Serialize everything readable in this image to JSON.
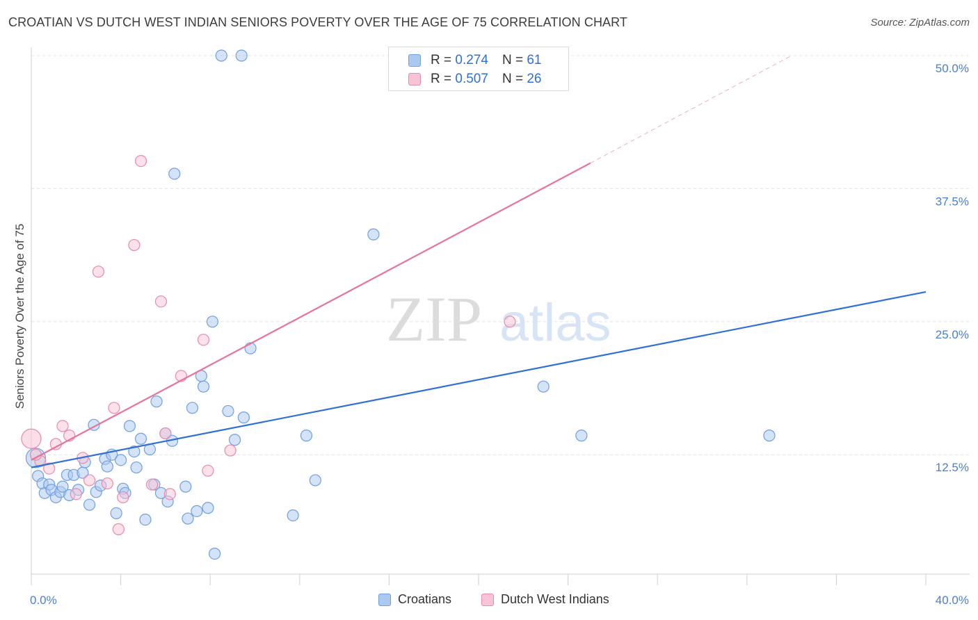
{
  "title": "CROATIAN VS DUTCH WEST INDIAN SENIORS POVERTY OVER THE AGE OF 75 CORRELATION CHART",
  "source": "Source: ZipAtlas.com",
  "watermark": {
    "zip": "ZIP",
    "atlas": "atlas"
  },
  "legend": {
    "rows": [
      {
        "r_label": "R =",
        "r_value": "0.274",
        "n_label": "N =",
        "n_value": "61",
        "color": "#aac8f0",
        "border": "#6f9fe0"
      },
      {
        "r_label": "R =",
        "r_value": "0.507",
        "n_label": "N =",
        "n_value": "26",
        "color": "#f8c3d4",
        "border": "#e98aaa"
      }
    ]
  },
  "chart_data": {
    "type": "scatter",
    "ylabel": "Seniors Poverty Over the Age of 75",
    "xlim": [
      0,
      40
    ],
    "ylim": [
      0,
      50
    ],
    "x_tick_labels": [
      {
        "value": 0,
        "label": "0.0%"
      },
      {
        "value": 40,
        "label": "40.0%"
      }
    ],
    "y_tick_labels": [
      {
        "value": 12.5,
        "label": "12.5%"
      },
      {
        "value": 25,
        "label": "25.0%"
      },
      {
        "value": 37.5,
        "label": "37.5%"
      },
      {
        "value": 50,
        "label": "50.0%"
      }
    ],
    "grid": true,
    "legend_position": "top-center",
    "series": [
      {
        "name": "Croatians",
        "color": "#aac8f0",
        "stroke": "#6f9fe0",
        "trend": {
          "x": [
            0,
            40
          ],
          "y": [
            11.3,
            27.8
          ],
          "color": "#2f6fd6"
        },
        "points": [
          [
            0.2,
            12.2,
            "big"
          ],
          [
            0.3,
            10.5
          ],
          [
            0.5,
            9.8
          ],
          [
            0.6,
            8.9
          ],
          [
            0.8,
            9.7
          ],
          [
            0.9,
            9.2
          ],
          [
            1.1,
            8.5
          ],
          [
            1.3,
            9.0
          ],
          [
            1.4,
            9.5
          ],
          [
            1.6,
            10.6
          ],
          [
            1.7,
            8.7
          ],
          [
            1.9,
            10.6
          ],
          [
            2.1,
            9.2
          ],
          [
            2.3,
            10.8
          ],
          [
            2.4,
            11.8
          ],
          [
            2.6,
            7.8
          ],
          [
            2.8,
            15.3
          ],
          [
            2.9,
            9.0
          ],
          [
            3.1,
            9.6
          ],
          [
            3.3,
            12.1
          ],
          [
            3.4,
            11.4
          ],
          [
            3.6,
            12.5
          ],
          [
            3.8,
            7.0
          ],
          [
            4.0,
            12.0
          ],
          [
            4.1,
            9.3
          ],
          [
            4.2,
            8.9
          ],
          [
            4.4,
            15.2
          ],
          [
            4.6,
            12.8
          ],
          [
            4.7,
            11.3
          ],
          [
            4.9,
            14.0
          ],
          [
            5.1,
            6.4
          ],
          [
            5.3,
            13.0
          ],
          [
            5.5,
            9.7
          ],
          [
            5.6,
            17.5
          ],
          [
            5.8,
            8.9
          ],
          [
            6.0,
            14.5
          ],
          [
            6.1,
            8.1
          ],
          [
            6.3,
            13.8
          ],
          [
            6.4,
            38.9
          ],
          [
            6.9,
            9.5
          ],
          [
            7.0,
            6.5
          ],
          [
            7.2,
            16.9
          ],
          [
            7.4,
            7.2
          ],
          [
            7.6,
            19.9
          ],
          [
            7.7,
            18.9
          ],
          [
            7.9,
            7.5
          ],
          [
            8.1,
            25.0
          ],
          [
            8.2,
            3.2
          ],
          [
            8.5,
            50.0
          ],
          [
            8.8,
            16.6
          ],
          [
            9.1,
            13.9
          ],
          [
            9.4,
            50.0
          ],
          [
            9.5,
            16.0
          ],
          [
            9.8,
            22.5
          ],
          [
            11.7,
            6.8
          ],
          [
            12.3,
            14.3
          ],
          [
            12.7,
            10.1
          ],
          [
            15.3,
            33.2
          ],
          [
            22.9,
            18.9
          ],
          [
            24.6,
            14.3
          ],
          [
            33.0,
            14.3
          ]
        ]
      },
      {
        "name": "Dutch West Indians",
        "color": "#f8c3d4",
        "stroke": "#e98aaa",
        "trend": {
          "x": [
            0,
            25
          ],
          "y": [
            12.0,
            39.9
          ],
          "dash_to": [
            34,
            50.0
          ],
          "color": "#e8739a"
        },
        "points": [
          [
            0.0,
            14.0,
            "big"
          ],
          [
            0.4,
            11.9
          ],
          [
            0.8,
            11.2
          ],
          [
            1.1,
            13.5
          ],
          [
            1.4,
            15.2
          ],
          [
            1.7,
            14.3
          ],
          [
            2.0,
            8.8
          ],
          [
            2.3,
            12.2
          ],
          [
            2.6,
            10.1
          ],
          [
            3.0,
            29.7
          ],
          [
            3.4,
            9.8
          ],
          [
            3.7,
            16.9
          ],
          [
            3.9,
            5.5
          ],
          [
            4.1,
            8.5
          ],
          [
            4.6,
            32.2
          ],
          [
            4.9,
            40.1
          ],
          [
            5.4,
            9.7
          ],
          [
            5.8,
            26.9
          ],
          [
            6.0,
            14.5
          ],
          [
            6.2,
            8.8
          ],
          [
            6.7,
            19.9
          ],
          [
            7.7,
            23.3
          ],
          [
            7.9,
            11.0
          ],
          [
            8.9,
            12.9
          ],
          [
            21.4,
            25.0
          ],
          [
            0.2,
            12.5
          ]
        ]
      }
    ]
  }
}
